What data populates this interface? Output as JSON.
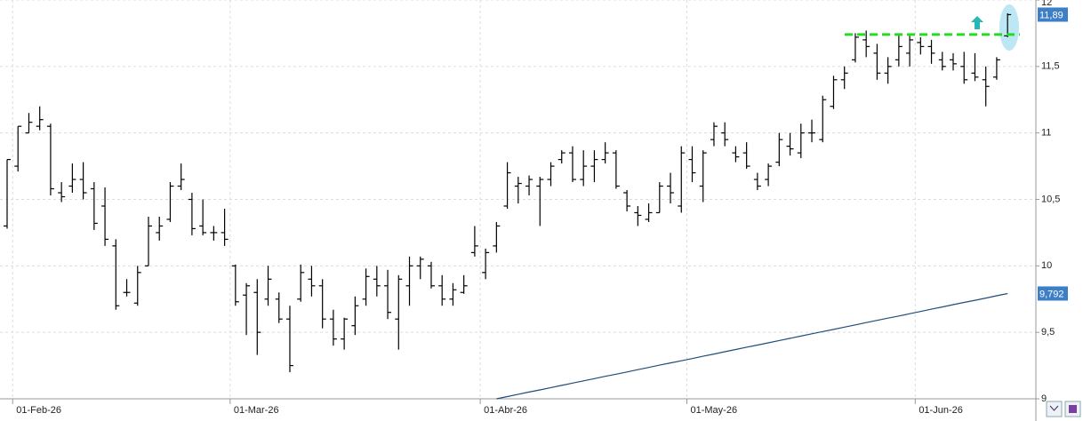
{
  "chart_data": {
    "type": "ohlc",
    "categories": [
      null,
      "01-Feb-26",
      null,
      null,
      null,
      null,
      null,
      null,
      null,
      null,
      null,
      null,
      null,
      null,
      null,
      null,
      null,
      null,
      null,
      null,
      null,
      "01-Mar-26",
      null,
      null,
      null,
      null,
      null,
      null,
      null,
      null,
      null,
      null,
      null,
      null,
      null,
      null,
      null,
      null,
      null,
      null,
      null,
      null,
      null,
      null,
      "01-Abr-26",
      null,
      null,
      null,
      null,
      null,
      null,
      null,
      null,
      null,
      null,
      null,
      null,
      null,
      null,
      null,
      null,
      null,
      null,
      "01-May-26",
      null,
      null,
      null,
      null,
      null,
      null,
      null,
      null,
      null,
      null,
      null,
      null,
      null,
      null,
      null,
      null,
      null,
      null,
      null,
      null,
      "01-Jun-26",
      null,
      null,
      null,
      null,
      null,
      null,
      null,
      null
    ],
    "open": [
      10.3,
      10.75,
      11.0,
      11.05,
      11.05,
      10.55,
      10.6,
      10.65,
      10.58,
      10.45,
      10.15,
      9.8,
      9.72,
      10.0,
      10.25,
      10.35,
      10.6,
      10.5,
      10.3,
      10.25,
      10.25,
      10.0,
      9.78,
      9.8,
      9.75,
      9.75,
      9.6,
      9.75,
      9.9,
      9.85,
      9.6,
      9.45,
      9.55,
      9.75,
      9.9,
      9.85,
      9.6,
      9.85,
      10.0,
      10.0,
      9.85,
      9.75,
      9.8,
      10.1,
      9.95,
      10.15,
      10.45,
      10.6,
      10.6,
      10.6,
      10.65,
      10.8,
      10.85,
      10.65,
      10.75,
      10.8,
      10.85,
      10.55,
      10.4,
      10.35,
      10.4,
      10.6,
      10.45,
      10.8,
      10.6,
      10.95,
      11.0,
      10.85,
      10.85,
      10.65,
      10.65,
      10.78,
      10.9,
      10.85,
      11.0,
      10.95,
      11.2,
      11.4,
      11.55,
      11.7,
      11.6,
      11.45,
      11.55,
      11.6,
      11.68,
      11.65,
      11.55,
      11.55,
      11.5,
      11.45,
      11.4,
      11.42,
      11.73
    ],
    "high": [
      10.8,
      11.05,
      11.15,
      11.2,
      11.07,
      10.63,
      10.77,
      10.78,
      10.63,
      10.59,
      10.2,
      9.9,
      10.0,
      10.37,
      10.37,
      10.63,
      10.77,
      10.55,
      10.5,
      10.3,
      10.43,
      10.01,
      9.87,
      9.9,
      10.0,
      9.8,
      9.7,
      10.01,
      10.0,
      9.9,
      9.67,
      9.61,
      9.77,
      9.98,
      10.0,
      9.97,
      9.93,
      10.07,
      10.07,
      10.03,
      9.93,
      9.87,
      9.93,
      10.3,
      10.13,
      10.33,
      10.78,
      10.67,
      10.68,
      10.67,
      10.78,
      10.87,
      10.9,
      10.87,
      10.87,
      10.93,
      10.87,
      10.57,
      10.45,
      10.47,
      10.63,
      10.7,
      10.9,
      10.9,
      10.87,
      11.08,
      11.08,
      10.9,
      10.93,
      10.7,
      10.77,
      11.0,
      11.0,
      11.07,
      11.1,
      11.28,
      11.43,
      11.5,
      11.75,
      11.77,
      11.67,
      11.57,
      11.75,
      11.73,
      11.72,
      11.7,
      11.61,
      11.6,
      11.61,
      11.6,
      11.5,
      11.57,
      11.9
    ],
    "low": [
      10.28,
      10.71,
      11.0,
      11.02,
      10.53,
      10.48,
      10.55,
      10.5,
      10.27,
      10.15,
      9.67,
      9.77,
      9.7,
      10.0,
      10.19,
      10.33,
      10.57,
      10.23,
      10.23,
      10.19,
      10.15,
      9.7,
      9.48,
      9.33,
      9.7,
      9.57,
      9.2,
      9.73,
      9.77,
      9.53,
      9.4,
      9.37,
      9.48,
      9.7,
      9.77,
      9.6,
      9.37,
      9.7,
      9.9,
      9.83,
      9.7,
      9.7,
      9.79,
      10.07,
      9.9,
      10.1,
      10.43,
      10.47,
      10.53,
      10.3,
      10.6,
      10.77,
      10.63,
      10.6,
      10.63,
      10.77,
      10.58,
      10.41,
      10.3,
      10.33,
      10.4,
      10.47,
      10.4,
      10.63,
      10.48,
      10.9,
      10.9,
      10.78,
      10.73,
      10.57,
      10.6,
      10.75,
      10.83,
      10.81,
      10.93,
      10.93,
      11.18,
      11.33,
      11.53,
      11.57,
      11.4,
      11.37,
      11.5,
      11.5,
      11.59,
      11.52,
      11.47,
      11.47,
      11.37,
      11.39,
      11.2,
      11.4,
      11.72
    ],
    "close": [
      10.8,
      11.05,
      11.08,
      11.1,
      10.58,
      10.52,
      10.65,
      10.55,
      10.32,
      10.2,
      9.7,
      9.8,
      9.95,
      10.3,
      10.3,
      10.6,
      10.65,
      10.28,
      10.25,
      10.25,
      10.2,
      9.73,
      9.85,
      9.5,
      9.9,
      9.6,
      9.25,
      9.95,
      9.85,
      9.6,
      9.45,
      9.6,
      9.7,
      9.92,
      9.85,
      9.65,
      9.9,
      10.0,
      10.05,
      9.85,
      9.75,
      9.82,
      9.85,
      10.15,
      10.1,
      10.3,
      10.7,
      10.62,
      10.65,
      10.65,
      10.75,
      10.85,
      10.65,
      10.75,
      10.8,
      10.85,
      10.6,
      10.45,
      10.38,
      10.4,
      10.6,
      10.55,
      10.85,
      10.7,
      10.85,
      11.05,
      10.95,
      10.82,
      10.75,
      10.6,
      10.75,
      10.95,
      10.88,
      11.0,
      11.0,
      11.25,
      11.4,
      11.45,
      11.72,
      11.65,
      11.45,
      11.5,
      11.65,
      11.7,
      11.65,
      11.6,
      11.5,
      11.52,
      11.4,
      11.42,
      11.35,
      11.55,
      11.89
    ],
    "ma": {
      "color": "#1f4e79",
      "values": [
        null,
        null,
        null,
        null,
        null,
        null,
        null,
        null,
        null,
        null,
        null,
        null,
        null,
        null,
        null,
        null,
        null,
        null,
        null,
        null,
        null,
        null,
        null,
        null,
        null,
        null,
        null,
        null,
        null,
        null,
        null,
        null,
        null,
        null,
        null,
        null,
        null,
        null,
        null,
        null,
        null,
        null,
        null,
        null,
        null,
        9.0,
        9.017,
        9.034,
        9.051,
        9.067,
        9.084,
        9.101,
        9.118,
        9.135,
        9.152,
        9.169,
        9.185,
        9.202,
        9.219,
        9.236,
        9.253,
        9.27,
        9.286,
        9.303,
        9.32,
        9.337,
        9.354,
        9.371,
        9.388,
        9.404,
        9.421,
        9.438,
        9.455,
        9.472,
        9.489,
        9.506,
        9.522,
        9.539,
        9.556,
        9.573,
        9.59,
        9.607,
        9.623,
        9.64,
        9.657,
        9.674,
        9.691,
        9.708,
        9.725,
        9.741,
        9.758,
        9.775,
        9.792
      ]
    },
    "last_price": {
      "value": 11.89,
      "label": "11,89"
    },
    "ma_last": {
      "value": 9.792,
      "label": "9,792"
    },
    "resistance": {
      "value": 11.74,
      "color": "#22dd22"
    },
    "color": "#000000",
    "ylim": [
      9,
      12
    ],
    "yticks": [
      9,
      {
        "value": 9.5,
        "label": "9,5"
      },
      10,
      {
        "value": 10.5,
        "label": "10,5"
      },
      11,
      {
        "value": 11.5,
        "label": "11,5"
      },
      12
    ],
    "grid": true
  }
}
